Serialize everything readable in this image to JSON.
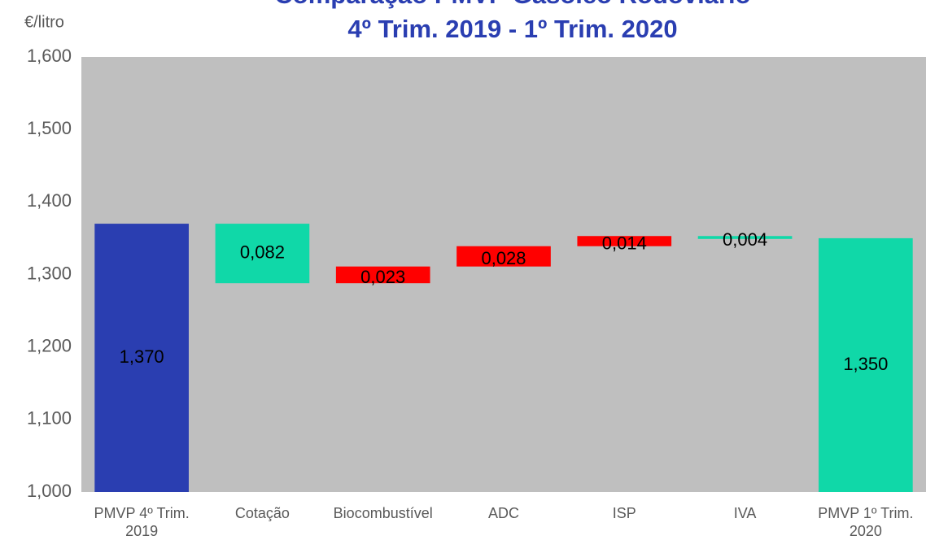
{
  "chart_data": {
    "type": "waterfall",
    "title": [
      "Comparação PMVP Gasóleo Rodoviário",
      "4º Trim. 2019 - 1º Trim. 2020"
    ],
    "y_axis_label": "€/litro",
    "categories": [
      "PMVP 4º Trim. 2019",
      "Cotação",
      "Biocombustível",
      "ADC",
      "ISP",
      "IVA",
      "PMVP 1º Trim. 2020"
    ],
    "values": [
      1.37,
      -0.082,
      0.023,
      0.028,
      0.014,
      -0.004,
      1.35
    ],
    "value_labels": [
      "1,370",
      "0,082",
      "0,023",
      "0,028",
      "0,014",
      "0,004",
      "1,350"
    ],
    "kinds": [
      "total",
      "delta",
      "delta",
      "delta",
      "delta",
      "delta",
      "total"
    ],
    "colors": [
      "#2a3eb1",
      "#10d8a8",
      "#ff0000",
      "#ff0000",
      "#ff0000",
      "#10d8a8",
      "#10d8a8"
    ],
    "ylim": [
      1.0,
      1.6
    ],
    "yticks": [
      {
        "value": 1.0,
        "label": "1,000"
      },
      {
        "value": 1.1,
        "label": "1,100"
      },
      {
        "value": 1.2,
        "label": "1,200"
      },
      {
        "value": 1.3,
        "label": "1,300"
      },
      {
        "value": 1.4,
        "label": "1,400"
      },
      {
        "value": 1.5,
        "label": "1,500"
      },
      {
        "value": 1.6,
        "label": "1,600"
      }
    ],
    "plot_background": "#bfbfbf"
  }
}
